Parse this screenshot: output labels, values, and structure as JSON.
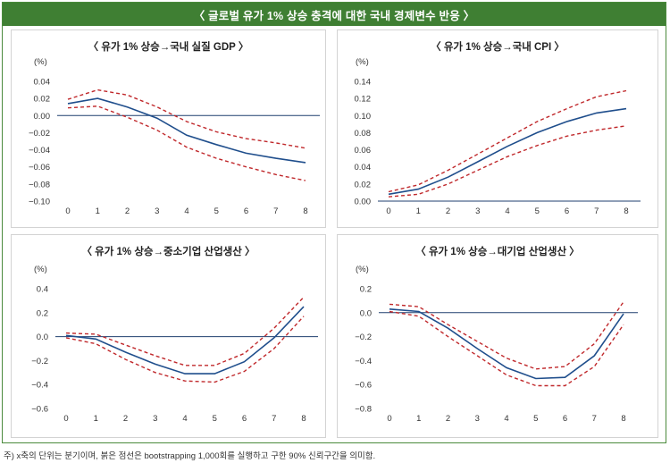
{
  "title": "〈 글로벌 유가 1% 상승 충격에 대한 국내 경제변수 반응 〉",
  "footnote": "주) x축의 단위는 분기이며, 붉은 점선은 bootstrapping 1,000회를 실행하고 구한 90% 신뢰구간을 의미함.",
  "colors": {
    "header": "#3f7f33",
    "response": "#1f4e8c",
    "band": "#c0282b",
    "zero": "#1f3f6f"
  },
  "chart_data": [
    {
      "type": "line",
      "title": "〈 유가 1% 상승→국내 실질 GDP 〉",
      "ylabel": "(%)",
      "x": [
        0,
        1,
        2,
        3,
        4,
        5,
        6,
        7,
        8
      ],
      "ylim": [
        -0.1,
        0.04
      ],
      "yticks": [
        0.04,
        0.02,
        0.0,
        -0.02,
        -0.04,
        -0.06,
        -0.08,
        -0.1
      ],
      "ytick_labels": [
        "0.04",
        "0.02",
        "0.00",
        "−0.02",
        "−0.04",
        "−0.06",
        "−0.08",
        "−0.10"
      ],
      "series": [
        {
          "role": "response",
          "values": [
            0.014,
            0.02,
            0.01,
            -0.003,
            -0.023,
            -0.034,
            -0.044,
            -0.05,
            -0.055
          ]
        },
        {
          "role": "upper",
          "values": [
            0.019,
            0.03,
            0.024,
            0.01,
            -0.007,
            -0.019,
            -0.027,
            -0.032,
            -0.038
          ]
        },
        {
          "role": "lower",
          "values": [
            0.009,
            0.011,
            -0.002,
            -0.017,
            -0.037,
            -0.05,
            -0.06,
            -0.069,
            -0.076
          ]
        }
      ]
    },
    {
      "type": "line",
      "title": "〈 유가 1% 상승→국내 CPI 〉",
      "ylabel": "(%)",
      "x": [
        0,
        1,
        2,
        3,
        4,
        5,
        6,
        7,
        8
      ],
      "ylim": [
        0.0,
        0.14
      ],
      "yticks": [
        0.14,
        0.12,
        0.1,
        0.08,
        0.06,
        0.04,
        0.02,
        0.0
      ],
      "ytick_labels": [
        "0.14",
        "0.12",
        "0.10",
        "0.08",
        "0.06",
        "0.04",
        "0.02",
        "0.00"
      ],
      "series": [
        {
          "role": "response",
          "values": [
            0.008,
            0.014,
            0.028,
            0.046,
            0.064,
            0.08,
            0.093,
            0.103,
            0.108
          ]
        },
        {
          "role": "upper",
          "values": [
            0.011,
            0.019,
            0.036,
            0.055,
            0.074,
            0.093,
            0.108,
            0.122,
            0.129
          ]
        },
        {
          "role": "lower",
          "values": [
            0.005,
            0.008,
            0.02,
            0.036,
            0.052,
            0.065,
            0.076,
            0.083,
            0.088
          ]
        }
      ]
    },
    {
      "type": "line",
      "title": "〈 유가 1% 상승→중소기업 산업생산 〉",
      "ylabel": "(%)",
      "x": [
        0,
        1,
        2,
        3,
        4,
        5,
        6,
        7,
        8
      ],
      "ylim": [
        -0.6,
        0.4
      ],
      "yticks": [
        0.4,
        0.2,
        0.0,
        -0.2,
        -0.4,
        -0.6
      ],
      "ytick_labels": [
        "0.4",
        "0.2",
        "0.0",
        "−0.2",
        "−0.4",
        "−0.6"
      ],
      "series": [
        {
          "role": "response",
          "values": [
            0.01,
            -0.02,
            -0.13,
            -0.23,
            -0.31,
            -0.31,
            -0.21,
            -0.01,
            0.25
          ]
        },
        {
          "role": "upper",
          "values": [
            0.03,
            0.02,
            -0.07,
            -0.16,
            -0.24,
            -0.24,
            -0.14,
            0.07,
            0.33
          ]
        },
        {
          "role": "lower",
          "values": [
            -0.01,
            -0.06,
            -0.19,
            -0.3,
            -0.37,
            -0.38,
            -0.29,
            -0.1,
            0.17
          ]
        }
      ]
    },
    {
      "type": "line",
      "title": "〈 유가 1% 상승→대기업 산업생산 〉",
      "ylabel": "(%)",
      "x": [
        0,
        1,
        2,
        3,
        4,
        5,
        6,
        7,
        8
      ],
      "ylim": [
        -0.8,
        0.2
      ],
      "yticks": [
        0.2,
        0.0,
        -0.2,
        -0.4,
        -0.6,
        -0.8
      ],
      "ytick_labels": [
        "0.2",
        "0.0",
        "−0.2",
        "−0.4",
        "−0.6",
        "−0.8"
      ],
      "series": [
        {
          "role": "response",
          "values": [
            0.03,
            0.01,
            -0.13,
            -0.3,
            -0.46,
            -0.55,
            -0.54,
            -0.36,
            -0.01
          ]
        },
        {
          "role": "upper",
          "values": [
            0.07,
            0.05,
            -0.1,
            -0.24,
            -0.38,
            -0.47,
            -0.45,
            -0.26,
            0.09
          ]
        },
        {
          "role": "lower",
          "values": [
            0.01,
            -0.03,
            -0.2,
            -0.36,
            -0.52,
            -0.61,
            -0.61,
            -0.45,
            -0.1
          ]
        }
      ]
    }
  ]
}
